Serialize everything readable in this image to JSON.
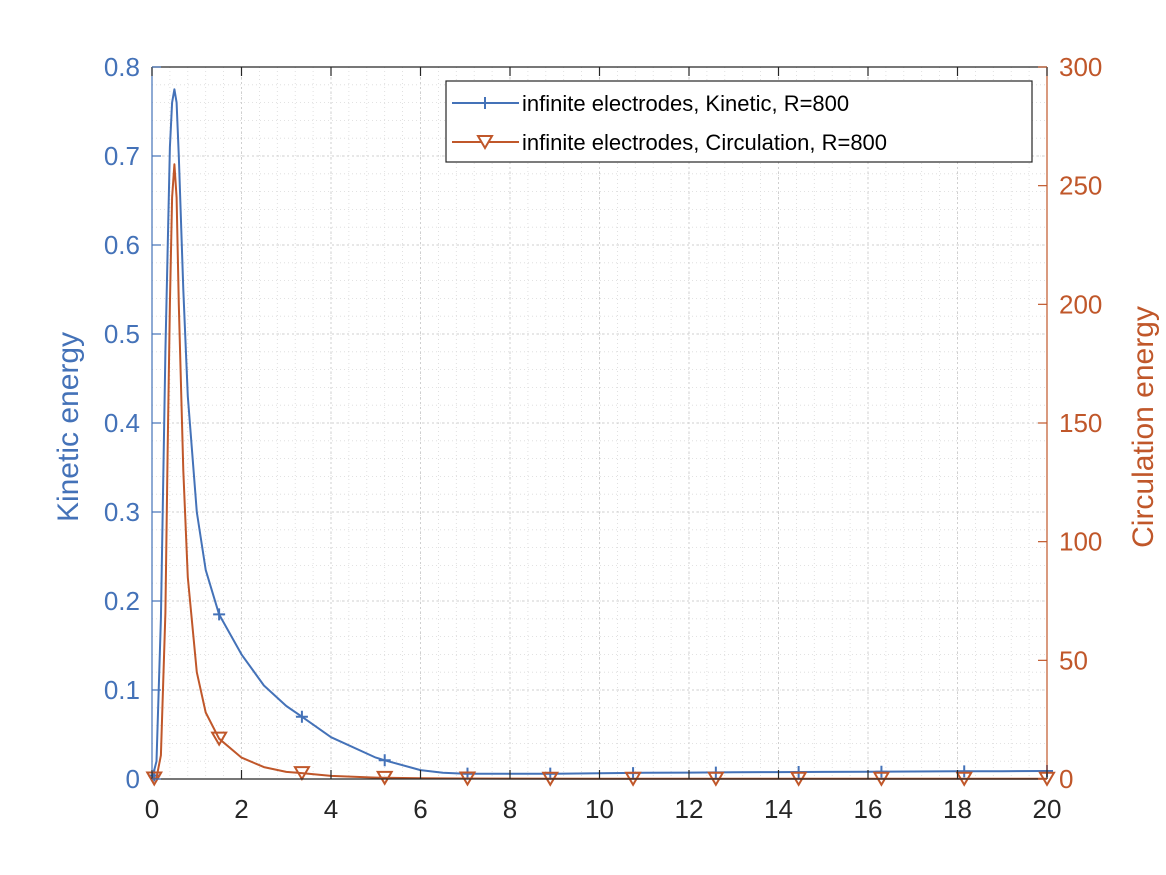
{
  "chart_data": {
    "type": "line",
    "x_axis": {
      "label": "",
      "lim": [
        0,
        20
      ],
      "ticks": [
        0,
        2,
        4,
        6,
        8,
        10,
        12,
        14,
        16,
        18,
        20
      ],
      "tick_labels": [
        "0",
        "2",
        "4",
        "6",
        "8",
        "10",
        "12",
        "14",
        "16",
        "18",
        "20"
      ]
    },
    "y_left": {
      "label": "Kinetic energy",
      "lim": [
        0,
        0.8
      ],
      "ticks": [
        0,
        0.1,
        0.2,
        0.3,
        0.4,
        0.5,
        0.6,
        0.7,
        0.8
      ],
      "tick_labels": [
        "0",
        "0.1",
        "0.2",
        "0.3",
        "0.4",
        "0.5",
        "0.6",
        "0.7",
        "0.8"
      ],
      "color": "#4472b8"
    },
    "y_right": {
      "label": "Circulation energy",
      "lim": [
        0,
        300
      ],
      "ticks": [
        0,
        50,
        100,
        150,
        200,
        250,
        300
      ],
      "tick_labels": [
        "0",
        "50",
        "100",
        "150",
        "200",
        "250",
        "300"
      ],
      "color": "#c0572a"
    },
    "grid": true,
    "minor_grid": true,
    "legend_position": "top-right",
    "series": [
      {
        "name": "infinite electrodes, Kinetic, R=800",
        "axis": "left",
        "color": "#4472b8",
        "marker": "plus",
        "x": [
          0,
          0.1,
          0.2,
          0.3,
          0.4,
          0.45,
          0.5,
          0.55,
          0.6,
          0.7,
          0.8,
          1.0,
          1.2,
          1.5,
          2.0,
          2.5,
          3.0,
          3.35,
          4.0,
          5.0,
          5.2,
          6.0,
          6.5,
          7.0,
          8.0,
          9.0,
          10,
          11,
          12,
          13,
          14,
          15,
          16,
          17,
          18,
          19,
          20
        ],
        "y": [
          0.0,
          0.02,
          0.18,
          0.48,
          0.71,
          0.76,
          0.775,
          0.76,
          0.7,
          0.55,
          0.43,
          0.3,
          0.235,
          0.185,
          0.14,
          0.105,
          0.082,
          0.07,
          0.047,
          0.024,
          0.021,
          0.01,
          0.007,
          0.006,
          0.006,
          0.006,
          0.0065,
          0.007,
          0.0072,
          0.0075,
          0.0078,
          0.008,
          0.0082,
          0.0084,
          0.0086,
          0.0088,
          0.009
        ],
        "marker_x": [
          0.05,
          1.5,
          3.35,
          5.2,
          7.05,
          8.9,
          10.75,
          12.6,
          14.45,
          16.3,
          18.15,
          20.0
        ],
        "marker_y": [
          0.004,
          0.185,
          0.07,
          0.021,
          0.006,
          0.006,
          0.0066,
          0.0072,
          0.0078,
          0.0082,
          0.0086,
          0.009
        ]
      },
      {
        "name": "infinite electrodes, Circulation, R=800",
        "axis": "right",
        "color": "#c0572a",
        "marker": "triangle-down",
        "x": [
          0,
          0.1,
          0.2,
          0.3,
          0.35,
          0.4,
          0.45,
          0.5,
          0.55,
          0.6,
          0.7,
          0.8,
          1.0,
          1.2,
          1.5,
          2.0,
          2.5,
          3.0,
          3.35,
          4.0,
          5.0,
          5.2,
          6.0,
          7.0,
          8.0,
          10,
          12,
          14,
          16,
          18,
          20
        ],
        "y": [
          0,
          0.5,
          10,
          70,
          140,
          200,
          245,
          259,
          245,
          200,
          130,
          85,
          45,
          28,
          17,
          9,
          5,
          3,
          2.5,
          1.3,
          0.6,
          0.5,
          0.3,
          0.2,
          0.15,
          0.1,
          0.1,
          0.1,
          0.1,
          0.1,
          0.1
        ],
        "marker_x": [
          0.05,
          1.5,
          3.35,
          5.2,
          7.05,
          8.9,
          10.75,
          12.6,
          14.45,
          16.3,
          18.15,
          20.0
        ],
        "marker_y": [
          0.2,
          17,
          2.5,
          0.5,
          0.2,
          0.12,
          0.1,
          0.1,
          0.1,
          0.1,
          0.1,
          0.1
        ]
      }
    ]
  }
}
